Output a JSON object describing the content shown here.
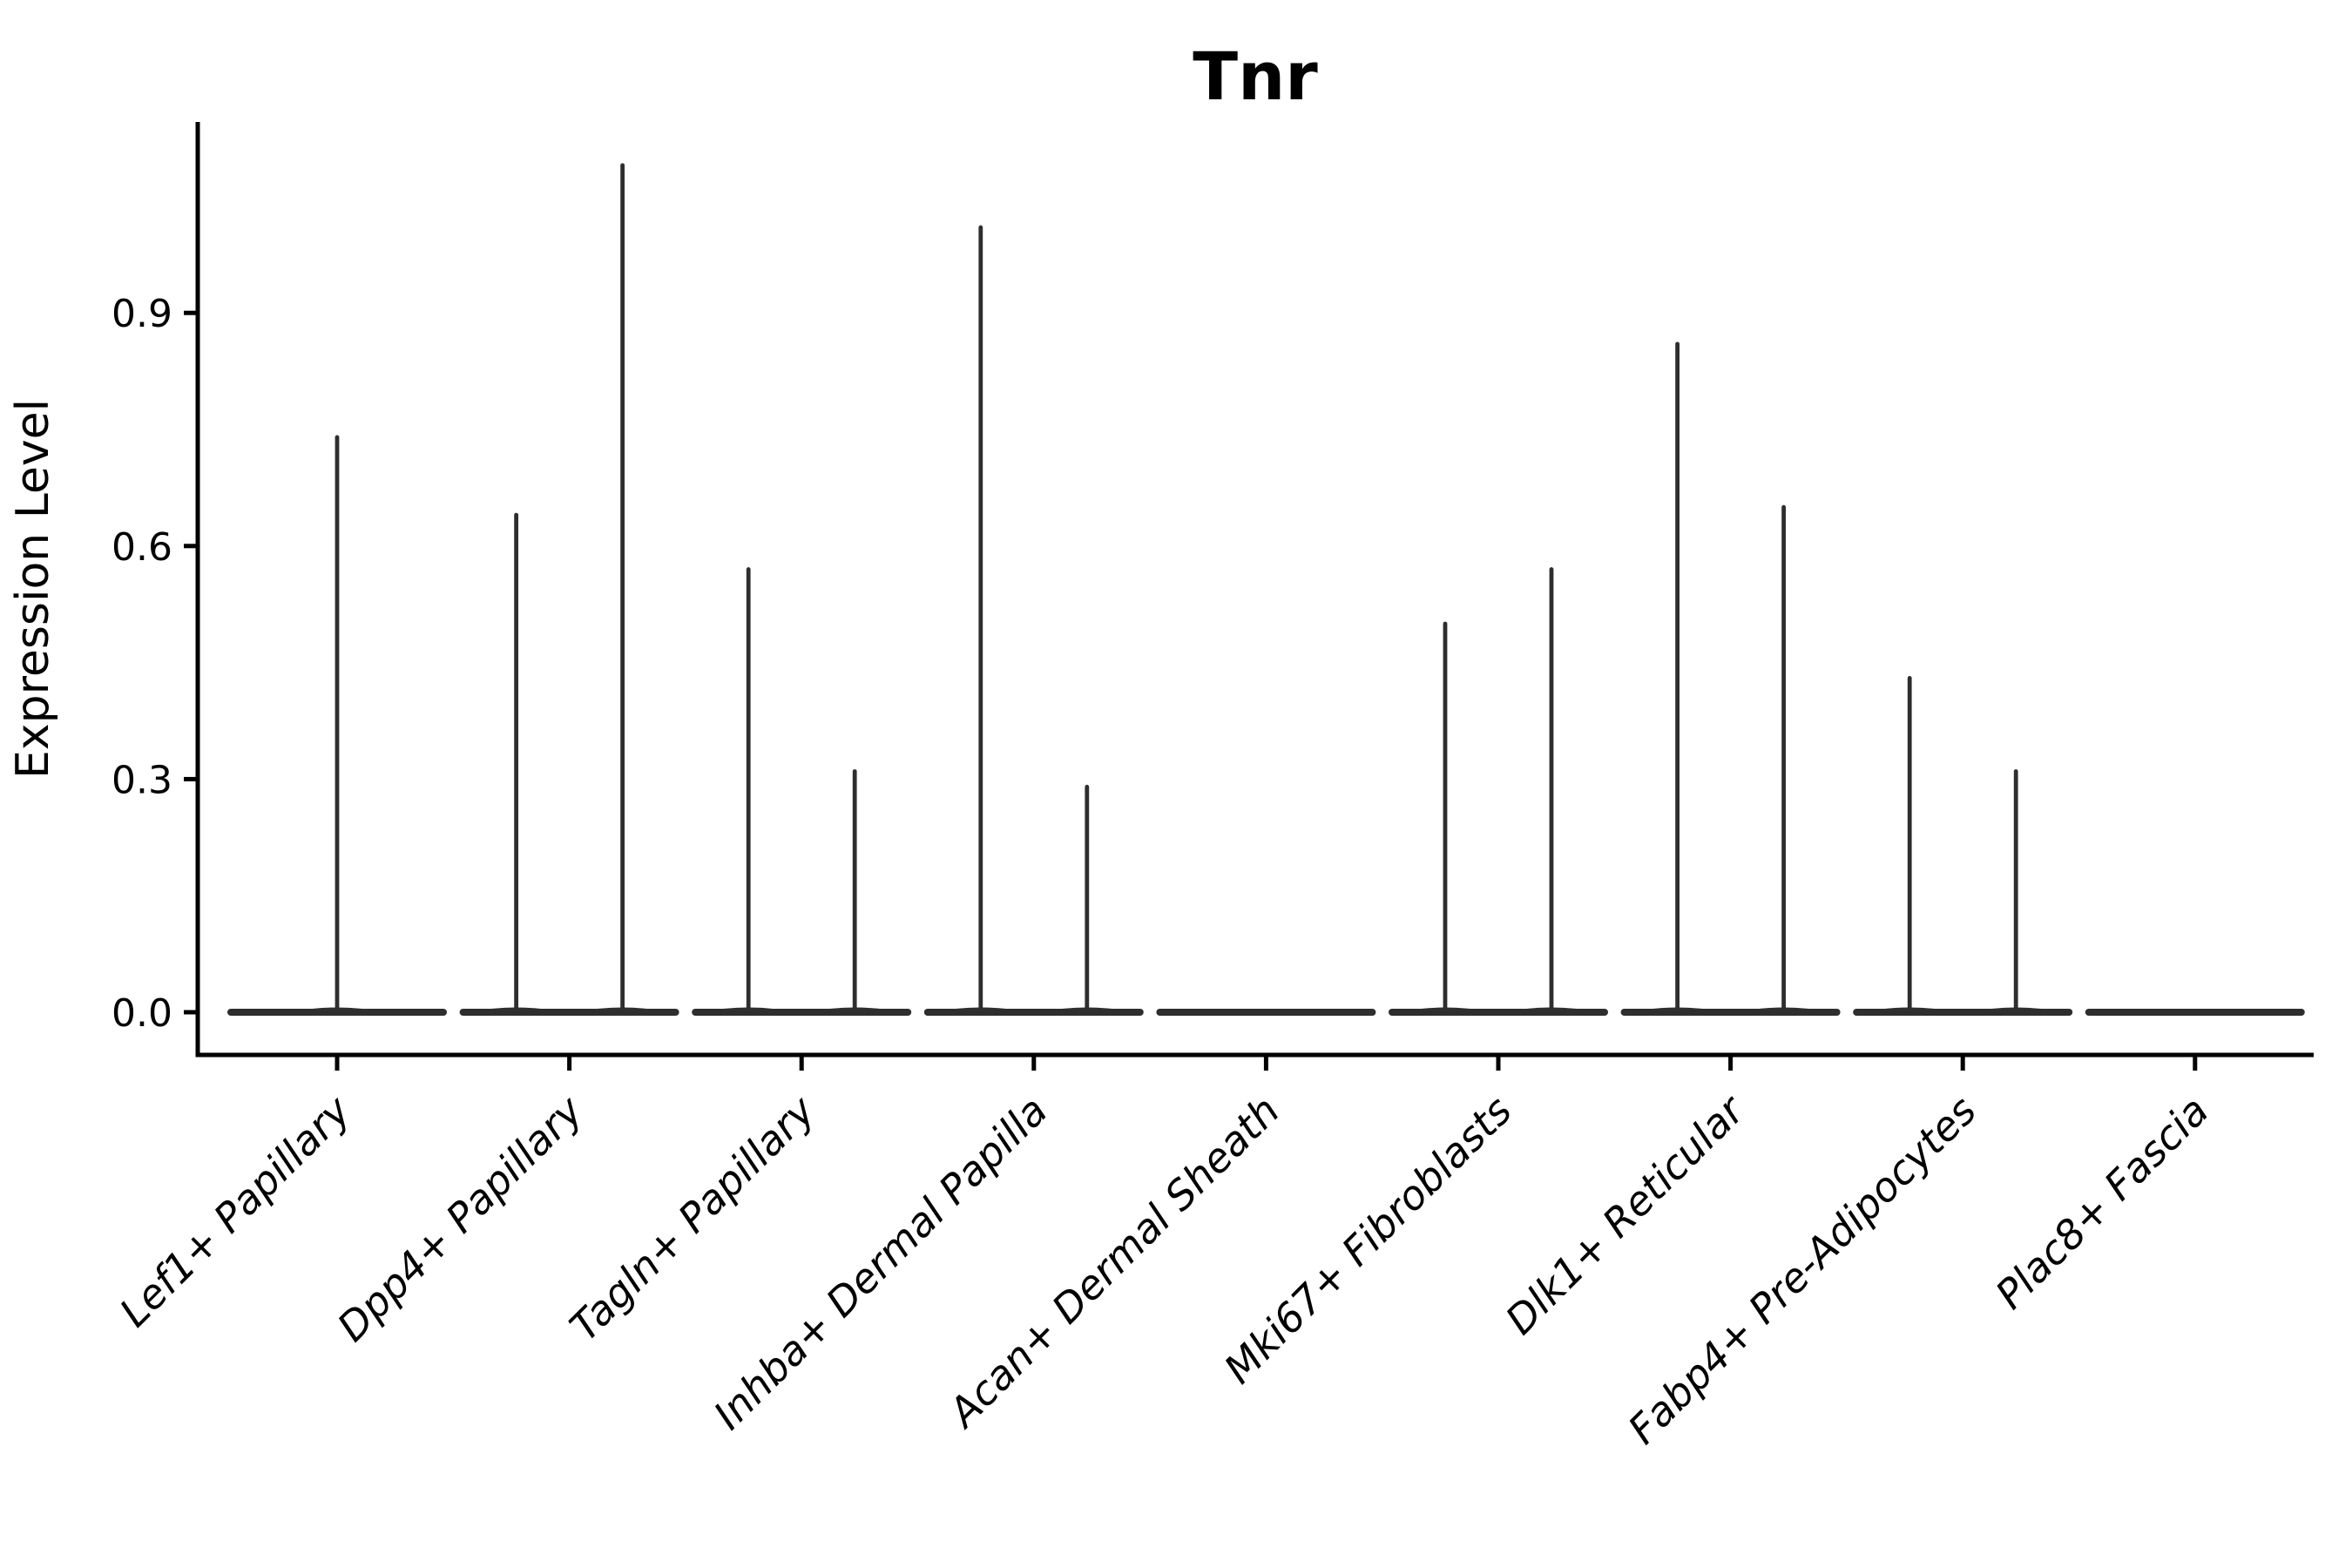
{
  "chart_data": {
    "type": "violin",
    "title": "Tnr",
    "xlabel": "",
    "ylabel": "Expression Level",
    "grid": false,
    "legend": null,
    "ylim": [
      -0.06,
      1.15
    ],
    "yticks": [
      {
        "value": 0.0,
        "label": "0.0"
      },
      {
        "value": 0.3,
        "label": "0.3"
      },
      {
        "value": 0.6,
        "label": "0.6"
      },
      {
        "value": 0.9,
        "label": "0.9"
      }
    ],
    "ink_color": "#2e2e2e",
    "axis_color": "#000000",
    "categories": [
      {
        "label": "Lef1+ Papillary",
        "violins": [
          {
            "dx": 0,
            "max": 0.74
          }
        ]
      },
      {
        "label": "Dpp4+ Papillary",
        "violins": [
          {
            "dx": -61,
            "max": 0.64
          },
          {
            "dx": 61,
            "max": 1.09
          }
        ]
      },
      {
        "label": "Tagln+ Papillary",
        "violins": [
          {
            "dx": -61,
            "max": 0.57
          },
          {
            "dx": 61,
            "max": 0.31
          }
        ]
      },
      {
        "label": "Inhba+ Dermal Papilla",
        "violins": [
          {
            "dx": -61,
            "max": 1.01
          },
          {
            "dx": 61,
            "max": 0.29
          }
        ]
      },
      {
        "label": "Acan+ Dermal Sheath",
        "violins": []
      },
      {
        "label": "Mki67+ Fibroblasts",
        "violins": [
          {
            "dx": -61,
            "max": 0.5
          },
          {
            "dx": 61,
            "max": 0.57
          }
        ]
      },
      {
        "label": "Dlk1+ Reticular",
        "violins": [
          {
            "dx": -61,
            "max": 0.86
          },
          {
            "dx": 61,
            "max": 0.65
          }
        ]
      },
      {
        "label": "Fabp4+ Pre-Adipocytes",
        "violins": [
          {
            "dx": -61,
            "max": 0.43
          },
          {
            "dx": 61,
            "max": 0.31
          }
        ]
      },
      {
        "label": "Plac8+ Fascia",
        "violins": []
      }
    ]
  }
}
